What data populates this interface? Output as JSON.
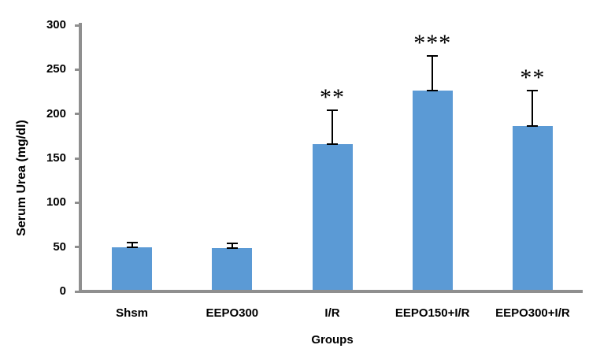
{
  "chart_data": {
    "type": "bar",
    "title": "",
    "categories": [
      "Shsm",
      "EEPO300",
      "I/R",
      "EEPO150+I/R",
      "EEPO300+I/R"
    ],
    "values": [
      50,
      49,
      166,
      226,
      186
    ],
    "errors": [
      5,
      5,
      38,
      39,
      40
    ],
    "significance": [
      "",
      "",
      "**",
      "***",
      "**"
    ],
    "xlabel": "Groups",
    "ylabel": "Serum Urea (mg/dl)",
    "ylim": [
      0,
      300
    ],
    "yticks": [
      0,
      50,
      100,
      150,
      200,
      250,
      300
    ],
    "grid": false,
    "legend": "none",
    "bar_color": "#5b9ad5",
    "axis_color": "#8f8f8f",
    "error_bar_color": "#000000",
    "text_color": "#000000"
  }
}
